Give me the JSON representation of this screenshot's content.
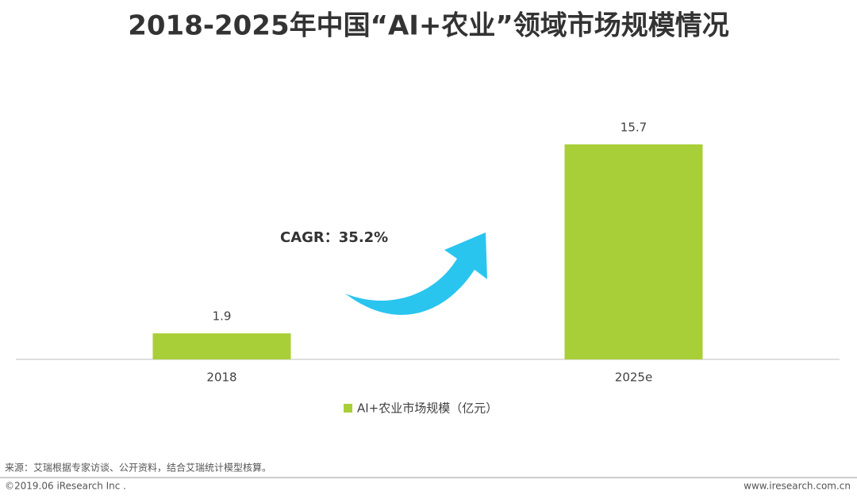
{
  "chart_data": {
    "type": "bar",
    "title": "2018-2025年中国“AI+农业”领域市场规模情况",
    "categories": [
      "2018",
      "2025e"
    ],
    "series": [
      {
        "name": "AI+农业市场规模（亿元）",
        "color": "#a9cf38",
        "values": [
          1.9,
          15.7
        ]
      }
    ],
    "annotation": "CAGR：35.2%"
  },
  "footer": {
    "source": "来源：艾瑞根据专家访谈、公开资料，结合艾瑞统计模型核算。",
    "copyright": "©2019.06 iResearch Inc .",
    "website": "www.iresearch.com.cn"
  }
}
